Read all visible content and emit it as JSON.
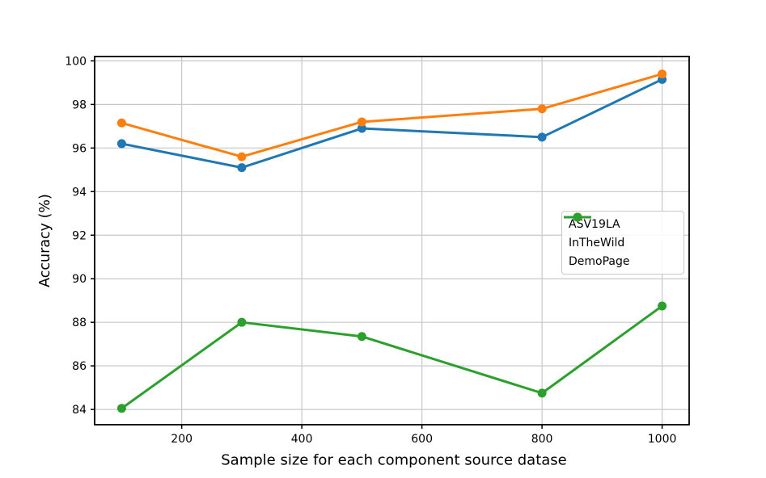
{
  "chart_data": {
    "type": "line",
    "x": [
      100,
      300,
      500,
      800,
      1000
    ],
    "series": [
      {
        "name": "ASV19LA",
        "color": "#1f77b4",
        "values": [
          96.2,
          95.1,
          96.9,
          96.5,
          99.15
        ]
      },
      {
        "name": "InTheWild",
        "color": "#ff7f0e",
        "values": [
          97.15,
          95.6,
          97.2,
          97.8,
          99.4
        ]
      },
      {
        "name": "DemoPage",
        "color": "#2ca02c",
        "values": [
          84.05,
          88.0,
          87.35,
          84.75,
          88.75
        ]
      }
    ],
    "title": "",
    "xlabel": "Sample size for each component source datase",
    "ylabel": "Accuracy (%)",
    "xticks": [
      "200",
      "400",
      "600",
      "800",
      "1000"
    ],
    "xtick_values": [
      200,
      400,
      600,
      800,
      1000
    ],
    "yticks": [
      "84",
      "86",
      "88",
      "90",
      "92",
      "94",
      "96",
      "98",
      "100"
    ],
    "ytick_values": [
      84,
      86,
      88,
      90,
      92,
      94,
      96,
      98,
      100
    ],
    "xlim": [
      55,
      1045
    ],
    "ylim": [
      83.3,
      100.2
    ],
    "grid": true,
    "grid_color": "#c8c8c8",
    "spine_color": "#000000",
    "legend_position": "center right",
    "marker": "circle"
  }
}
